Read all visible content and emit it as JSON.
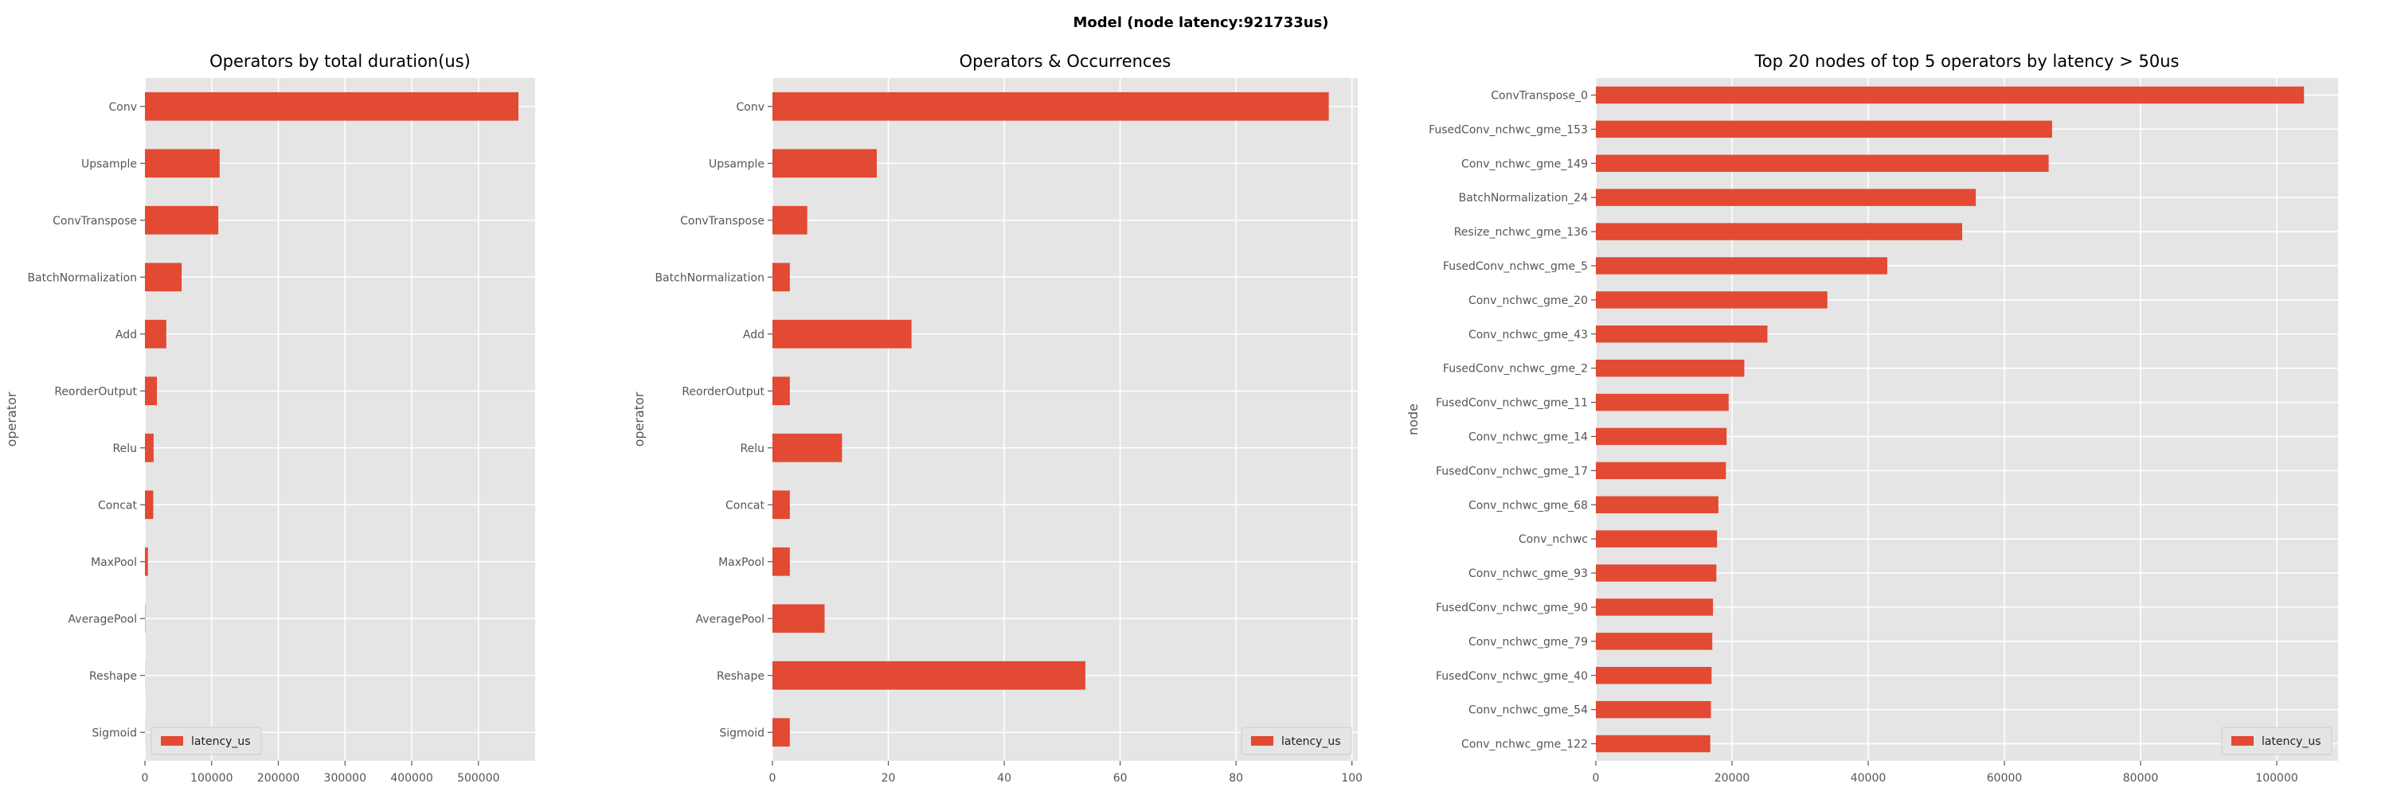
{
  "figure": {
    "suptitle": "Model (node latency:921733us)"
  },
  "colors": {
    "bar": "#E24A33",
    "axes_bg": "#E5E5E5",
    "grid": "#FFFFFF",
    "text": "#555555",
    "title": "#000000"
  },
  "chart_data": [
    {
      "type": "bar",
      "orientation": "horizontal",
      "title": "Operators by total duration(us)",
      "xlabel": "",
      "ylabel": "operator",
      "categories": [
        "Conv",
        "Upsample",
        "ConvTranspose",
        "BatchNormalization",
        "Add",
        "ReorderOutput",
        "Relu",
        "Concat",
        "MaxPool",
        "AveragePool",
        "Reshape",
        "Sigmoid"
      ],
      "series": [
        {
          "name": "latency_us",
          "values": [
            560000,
            112000,
            110000,
            55000,
            32000,
            18000,
            13000,
            12500,
            4500,
            500,
            200,
            150
          ]
        }
      ],
      "xlim": [
        0,
        585000
      ],
      "xticks": [
        0,
        100000,
        200000,
        300000,
        400000,
        500000
      ],
      "xtick_labels": [
        "0",
        "100000",
        "200000",
        "300000",
        "400000",
        "500000"
      ],
      "legend": "lower-left",
      "grid": true
    },
    {
      "type": "bar",
      "orientation": "horizontal",
      "title": "Operators & Occurrences",
      "xlabel": "",
      "ylabel": "operator",
      "categories": [
        "Conv",
        "Upsample",
        "ConvTranspose",
        "BatchNormalization",
        "Add",
        "ReorderOutput",
        "Relu",
        "Concat",
        "MaxPool",
        "AveragePool",
        "Reshape",
        "Sigmoid"
      ],
      "series": [
        {
          "name": "latency_us",
          "values": [
            96,
            18,
            6,
            3,
            24,
            3,
            12,
            3,
            3,
            9,
            54,
            3
          ]
        }
      ],
      "xlim": [
        0,
        101
      ],
      "xticks": [
        0,
        20,
        40,
        60,
        80,
        100
      ],
      "xtick_labels": [
        "0",
        "20",
        "40",
        "60",
        "80",
        "100"
      ],
      "legend": "lower-right",
      "grid": true
    },
    {
      "type": "bar",
      "orientation": "horizontal",
      "title": "Top 20 nodes of top 5 operators by latency > 50us",
      "xlabel": "",
      "ylabel": "node",
      "categories": [
        "ConvTranspose_0",
        "FusedConv_nchwc_gme_153",
        "Conv_nchwc_gme_149",
        "BatchNormalization_24",
        "Resize_nchwc_gme_136",
        "FusedConv_nchwc_gme_5",
        "Conv_nchwc_gme_20",
        "Conv_nchwc_gme_43",
        "FusedConv_nchwc_gme_2",
        "FusedConv_nchwc_gme_11",
        "Conv_nchwc_gme_14",
        "FusedConv_nchwc_gme_17",
        "Conv_nchwc_gme_68",
        "Conv_nchwc",
        "Conv_nchwc_gme_93",
        "FusedConv_nchwc_gme_90",
        "Conv_nchwc_gme_79",
        "FusedConv_nchwc_gme_40",
        "Conv_nchwc_gme_54",
        "Conv_nchwc_gme_122"
      ],
      "series": [
        {
          "name": "latency_us",
          "values": [
            104000,
            67000,
            66500,
            55800,
            53800,
            42800,
            34000,
            25200,
            21800,
            19500,
            19200,
            19100,
            18000,
            17800,
            17700,
            17200,
            17100,
            17000,
            16900,
            16800
          ]
        }
      ],
      "xlim": [
        0,
        109000
      ],
      "xticks": [
        0,
        20000,
        40000,
        60000,
        80000,
        100000
      ],
      "xtick_labels": [
        "0",
        "20000",
        "40000",
        "60000",
        "80000",
        "100000"
      ],
      "legend": "lower-right",
      "grid": true
    }
  ]
}
